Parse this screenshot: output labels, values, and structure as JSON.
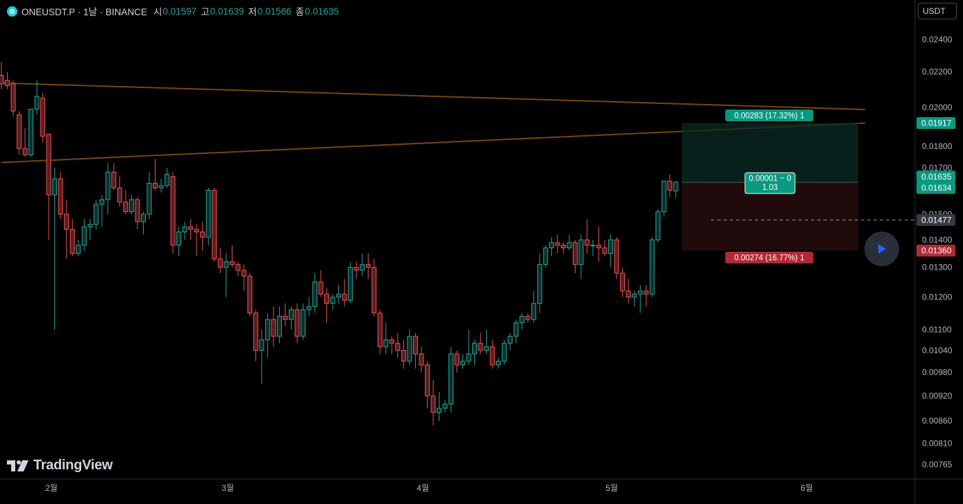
{
  "header": {
    "symbol": "ONEUSDT.P · 1날 · BINANCE",
    "open_label": "시",
    "open": "0.01597",
    "high_label": "고",
    "high": "0.01639",
    "low_label": "저",
    "low": "0.01566",
    "close_label": "종",
    "close": "0.01635"
  },
  "currency_button": "USDT",
  "logo_text": "TradingView",
  "colors": {
    "up": "#26a69a",
    "down": "#ef5350",
    "trendline": "#7a4a14",
    "background": "#000000"
  },
  "position_tool": {
    "target_label": "0.00283 (17.32%) 1",
    "center_label_line1": "0.00001 ~ 0",
    "center_label_line2": "1.03",
    "stop_label": "0.00274 (16.77%) 1",
    "target_price": 0.01917,
    "entry_price": 0.01634,
    "stop_price": 0.0136
  },
  "chart_data": {
    "type": "candlestick",
    "scale": "log",
    "x_labels": [
      "2월",
      "3월",
      "4월",
      "5월",
      "6월"
    ],
    "y_ticks": [
      "0.02400",
      "0.02200",
      "0.02000",
      "0.01800",
      "0.01700",
      "0.01500",
      "0.01400",
      "0.01300",
      "0.01200",
      "0.01100",
      "0.01040",
      "0.00980",
      "0.00920",
      "0.00860",
      "0.00810",
      "0.00765"
    ],
    "y_tick_values": [
      0.024,
      0.022,
      0.02,
      0.018,
      0.017,
      0.015,
      0.014,
      0.013,
      0.012,
      0.011,
      0.0104,
      0.0098,
      0.0092,
      0.0086,
      0.0081,
      0.00765
    ],
    "price_tags": [
      {
        "text": "0.01917",
        "value": 0.01917,
        "color": "#089981"
      },
      {
        "text": "0.01635",
        "value": 0.01635,
        "color": "#089981"
      },
      {
        "text": "0.01634",
        "value": 0.01634,
        "color": "#089981"
      },
      {
        "text": "0.01477",
        "value": 0.01477,
        "color": "#363a45"
      },
      {
        "text": "0.01360",
        "value": 0.0136,
        "color": "#b22833"
      }
    ],
    "dashed_line_value": 0.01477,
    "trendlines": [
      {
        "from": {
          "bar": 0,
          "price": 0.02135
        },
        "to": {
          "bar": 146,
          "price": 0.01988
        }
      },
      {
        "from": {
          "bar": 0,
          "price": 0.01724
        },
        "to": {
          "bar": 146,
          "price": 0.01917
        }
      }
    ],
    "candles": [
      [
        0.0218,
        0.0226,
        0.021,
        0.0213
      ],
      [
        0.0215,
        0.022,
        0.021,
        0.0212
      ],
      [
        0.0213,
        0.0215,
        0.0195,
        0.0198
      ],
      [
        0.0196,
        0.0198,
        0.0176,
        0.0179
      ],
      [
        0.0179,
        0.0189,
        0.0175,
        0.0176
      ],
      [
        0.0176,
        0.0199,
        0.0175,
        0.0199
      ],
      [
        0.0199,
        0.0215,
        0.0196,
        0.0206
      ],
      [
        0.0205,
        0.0208,
        0.0182,
        0.0185
      ],
      [
        0.0186,
        0.0186,
        0.014,
        0.0158
      ],
      [
        0.0158,
        0.017,
        0.011,
        0.0165
      ],
      [
        0.0165,
        0.0168,
        0.0148,
        0.015
      ],
      [
        0.015,
        0.0156,
        0.0133,
        0.0144
      ],
      [
        0.0144,
        0.0148,
        0.0134,
        0.0135
      ],
      [
        0.0135,
        0.014,
        0.0134,
        0.0138
      ],
      [
        0.0138,
        0.0148,
        0.0136,
        0.0145
      ],
      [
        0.0145,
        0.0148,
        0.014,
        0.0146
      ],
      [
        0.0146,
        0.0156,
        0.0144,
        0.0154
      ],
      [
        0.0154,
        0.0158,
        0.0145,
        0.0156
      ],
      [
        0.0156,
        0.0172,
        0.015,
        0.0168
      ],
      [
        0.0168,
        0.0172,
        0.016,
        0.0161
      ],
      [
        0.0161,
        0.0166,
        0.0153,
        0.0155
      ],
      [
        0.0155,
        0.016,
        0.015,
        0.0151
      ],
      [
        0.0151,
        0.0158,
        0.015,
        0.0156
      ],
      [
        0.0156,
        0.0157,
        0.0144,
        0.0147
      ],
      [
        0.0147,
        0.0151,
        0.0142,
        0.015
      ],
      [
        0.015,
        0.0168,
        0.0148,
        0.0163
      ],
      [
        0.0163,
        0.0174,
        0.016,
        0.0161
      ],
      [
        0.0161,
        0.0165,
        0.0159,
        0.0162
      ],
      [
        0.0162,
        0.017,
        0.0161,
        0.0167
      ],
      [
        0.0166,
        0.0168,
        0.0135,
        0.0138
      ],
      [
        0.0138,
        0.0145,
        0.0134,
        0.0143
      ],
      [
        0.0143,
        0.0147,
        0.014,
        0.0145
      ],
      [
        0.0145,
        0.0148,
        0.014,
        0.0144
      ],
      [
        0.0144,
        0.0146,
        0.0134,
        0.0143
      ],
      [
        0.0143,
        0.0147,
        0.0136,
        0.0141
      ],
      [
        0.0141,
        0.0161,
        0.0138,
        0.016
      ],
      [
        0.016,
        0.0161,
        0.0132,
        0.0133
      ],
      [
        0.0133,
        0.0137,
        0.0128,
        0.013
      ],
      [
        0.013,
        0.0135,
        0.012,
        0.0132
      ],
      [
        0.0132,
        0.0138,
        0.013,
        0.0131
      ],
      [
        0.0131,
        0.0132,
        0.0127,
        0.0129
      ],
      [
        0.0129,
        0.0131,
        0.0122,
        0.0127
      ],
      [
        0.0127,
        0.0128,
        0.0114,
        0.0115
      ],
      [
        0.0115,
        0.0116,
        0.0101,
        0.0104
      ],
      [
        0.0104,
        0.011,
        0.0095,
        0.0107
      ],
      [
        0.0107,
        0.0115,
        0.0102,
        0.0113
      ],
      [
        0.0113,
        0.0117,
        0.0105,
        0.0108
      ],
      [
        0.0108,
        0.0117,
        0.0106,
        0.0114
      ],
      [
        0.0114,
        0.0118,
        0.0111,
        0.0113
      ],
      [
        0.0113,
        0.0117,
        0.011,
        0.0116
      ],
      [
        0.0116,
        0.0118,
        0.0106,
        0.0108
      ],
      [
        0.0108,
        0.0118,
        0.0107,
        0.0116
      ],
      [
        0.0116,
        0.012,
        0.0114,
        0.0117
      ],
      [
        0.0117,
        0.0128,
        0.0115,
        0.0125
      ],
      [
        0.0125,
        0.0129,
        0.012,
        0.0121
      ],
      [
        0.0121,
        0.0123,
        0.0112,
        0.0118
      ],
      [
        0.0118,
        0.0121,
        0.0116,
        0.012
      ],
      [
        0.012,
        0.0124,
        0.0118,
        0.0121
      ],
      [
        0.0121,
        0.0126,
        0.0117,
        0.0119
      ],
      [
        0.0119,
        0.0132,
        0.0118,
        0.013
      ],
      [
        0.013,
        0.0132,
        0.0126,
        0.0129
      ],
      [
        0.0129,
        0.0135,
        0.0127,
        0.0131
      ],
      [
        0.0131,
        0.0135,
        0.0126,
        0.013
      ],
      [
        0.013,
        0.0133,
        0.0114,
        0.0115
      ],
      [
        0.0115,
        0.0116,
        0.0103,
        0.0105
      ],
      [
        0.0105,
        0.0112,
        0.0103,
        0.0107
      ],
      [
        0.0107,
        0.0108,
        0.0103,
        0.0106
      ],
      [
        0.0106,
        0.0109,
        0.0102,
        0.0104
      ],
      [
        0.0104,
        0.0107,
        0.0099,
        0.0101
      ],
      [
        0.0101,
        0.011,
        0.01,
        0.0108
      ],
      [
        0.0108,
        0.0109,
        0.0099,
        0.0103
      ],
      [
        0.0103,
        0.0105,
        0.0098,
        0.01
      ],
      [
        0.01,
        0.0101,
        0.0089,
        0.0092
      ],
      [
        0.0092,
        0.0096,
        0.0085,
        0.0088
      ],
      [
        0.0088,
        0.0093,
        0.0086,
        0.0089
      ],
      [
        0.0089,
        0.0091,
        0.0088,
        0.009
      ],
      [
        0.009,
        0.0105,
        0.0088,
        0.0103
      ],
      [
        0.0103,
        0.0104,
        0.0098,
        0.01
      ],
      [
        0.01,
        0.0103,
        0.0099,
        0.0101
      ],
      [
        0.0101,
        0.011,
        0.01,
        0.0103
      ],
      [
        0.0103,
        0.0107,
        0.01,
        0.0106
      ],
      [
        0.0106,
        0.0109,
        0.0103,
        0.0104
      ],
      [
        0.0104,
        0.011,
        0.0103,
        0.0105
      ],
      [
        0.0105,
        0.0107,
        0.0099,
        0.01
      ],
      [
        0.01,
        0.0102,
        0.0099,
        0.0101
      ],
      [
        0.0101,
        0.0107,
        0.01,
        0.0106
      ],
      [
        0.0106,
        0.0109,
        0.0104,
        0.0108
      ],
      [
        0.0108,
        0.0113,
        0.0106,
        0.0112
      ],
      [
        0.0112,
        0.0115,
        0.011,
        0.0114
      ],
      [
        0.0114,
        0.0115,
        0.0112,
        0.0113
      ],
      [
        0.0113,
        0.0122,
        0.0112,
        0.0118
      ],
      [
        0.0118,
        0.0135,
        0.0115,
        0.0131
      ],
      [
        0.0131,
        0.0138,
        0.013,
        0.0137
      ],
      [
        0.0137,
        0.0141,
        0.0134,
        0.0139
      ],
      [
        0.0139,
        0.0142,
        0.0135,
        0.0138
      ],
      [
        0.0138,
        0.0139,
        0.0135,
        0.0137
      ],
      [
        0.0137,
        0.0142,
        0.0136,
        0.0139
      ],
      [
        0.0139,
        0.014,
        0.0128,
        0.0131
      ],
      [
        0.0131,
        0.0142,
        0.0126,
        0.014
      ],
      [
        0.014,
        0.0148,
        0.0135,
        0.0138
      ],
      [
        0.0138,
        0.014,
        0.0134,
        0.0138
      ],
      [
        0.0138,
        0.0145,
        0.0132,
        0.0137
      ],
      [
        0.0137,
        0.014,
        0.0134,
        0.0135
      ],
      [
        0.0135,
        0.0142,
        0.013,
        0.014
      ],
      [
        0.014,
        0.0141,
        0.0126,
        0.0128
      ],
      [
        0.0128,
        0.013,
        0.012,
        0.0122
      ],
      [
        0.0122,
        0.0126,
        0.0118,
        0.012
      ],
      [
        0.012,
        0.0122,
        0.0117,
        0.0121
      ],
      [
        0.0121,
        0.0124,
        0.0115,
        0.0122
      ],
      [
        0.0122,
        0.0124,
        0.0117,
        0.0121
      ],
      [
        0.0121,
        0.0141,
        0.012,
        0.014
      ],
      [
        0.014,
        0.0152,
        0.0139,
        0.0151
      ],
      [
        0.0151,
        0.0164,
        0.0149,
        0.0164
      ],
      [
        0.0164,
        0.0167,
        0.0157,
        0.016
      ],
      [
        0.01597,
        0.01639,
        0.01566,
        0.01635
      ]
    ]
  }
}
